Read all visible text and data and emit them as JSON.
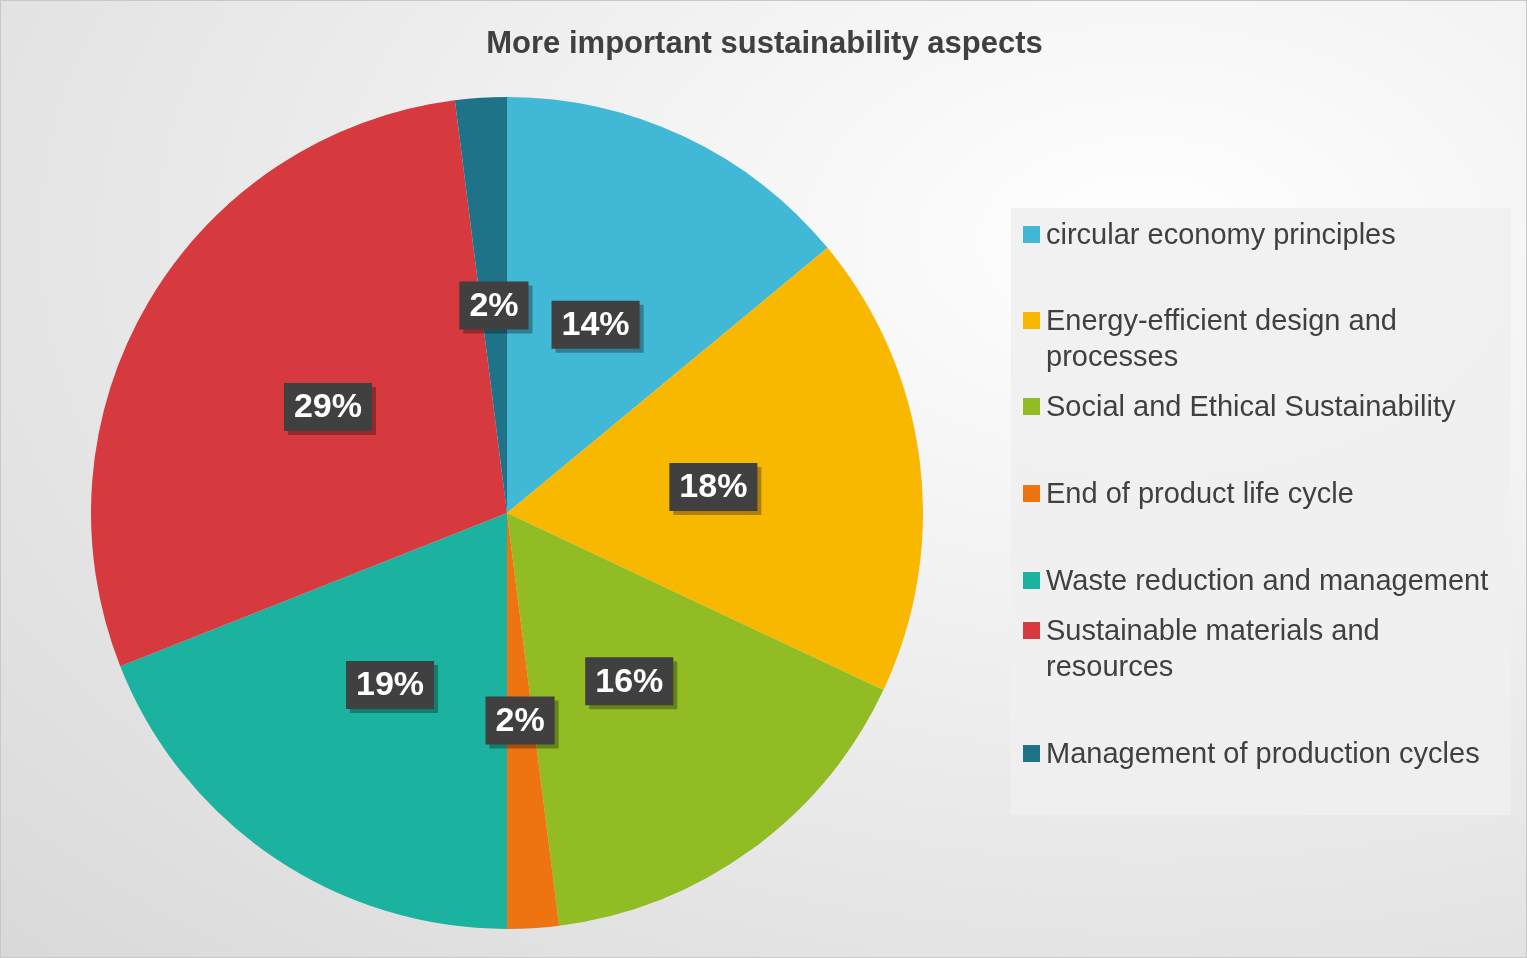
{
  "chart_data": {
    "type": "pie",
    "title": "More important sustainability aspects",
    "categories": [
      "circular economy principles",
      "Energy-efficient design and processes",
      "Social and Ethical Sustainability",
      "End of product life cycle",
      "Waste reduction and management",
      "Sustainable materials and resources",
      "Management of production cycles"
    ],
    "values": [
      14,
      18,
      16,
      2,
      19,
      29,
      2
    ],
    "value_labels": [
      "14%",
      "18%",
      "16%",
      "2%",
      "19%",
      "29%",
      "2%"
    ],
    "colors": [
      "#41b8d5",
      "#f9b800",
      "#92bc23",
      "#ed7410",
      "#1bb3a0",
      "#d63a3e",
      "#1e7388"
    ],
    "legend": "right"
  }
}
